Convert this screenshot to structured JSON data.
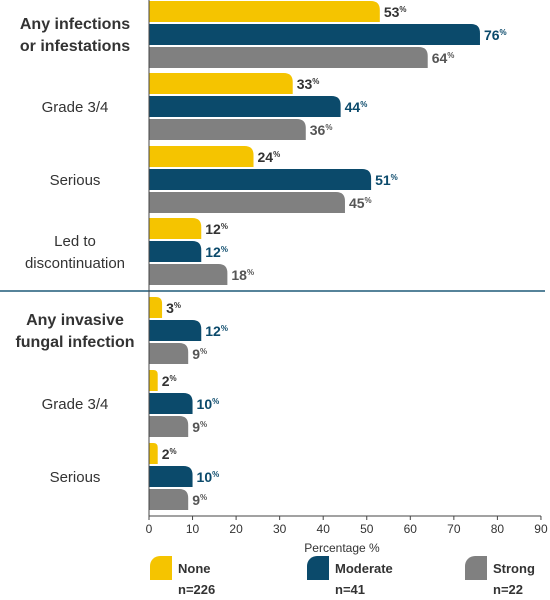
{
  "chart_data": {
    "type": "bar",
    "orientation": "horizontal",
    "categories": [
      "Any infections or infestations",
      "Grade 3/4",
      "Serious",
      "Led to discontinuation",
      "Any invasive fungal infection",
      "Grade 3/4",
      "Serious"
    ],
    "category_lines": [
      [
        "Any infections",
        "or infestations"
      ],
      [
        "Grade 3/4"
      ],
      [
        "Serious"
      ],
      [
        "Led to",
        "discontinuation"
      ],
      [
        "Any invasive",
        "fungal infection"
      ],
      [
        "Grade 3/4"
      ],
      [
        "Serious"
      ]
    ],
    "category_bold": [
      true,
      false,
      false,
      false,
      true,
      false,
      false
    ],
    "series": [
      {
        "name": "None",
        "n_label": "n=226",
        "color": "#f5c400",
        "values": [
          53,
          33,
          24,
          12,
          3,
          2,
          2
        ]
      },
      {
        "name": "Moderate",
        "n_label": "n=41",
        "color": "#0b4a6b",
        "values": [
          76,
          44,
          51,
          12,
          12,
          10,
          10
        ]
      },
      {
        "name": "Strong",
        "n_label": "n=22",
        "color": "#808080",
        "values": [
          64,
          36,
          45,
          18,
          9,
          9,
          9
        ]
      }
    ],
    "value_suffix": "%",
    "xlabel": "Percentage %",
    "xlim": [
      0,
      90
    ],
    "xticks": [
      0,
      10,
      20,
      30,
      40,
      50,
      60,
      70,
      80,
      90
    ],
    "grid": false,
    "legend_position": "bottom",
    "divider_after_category": 3
  }
}
